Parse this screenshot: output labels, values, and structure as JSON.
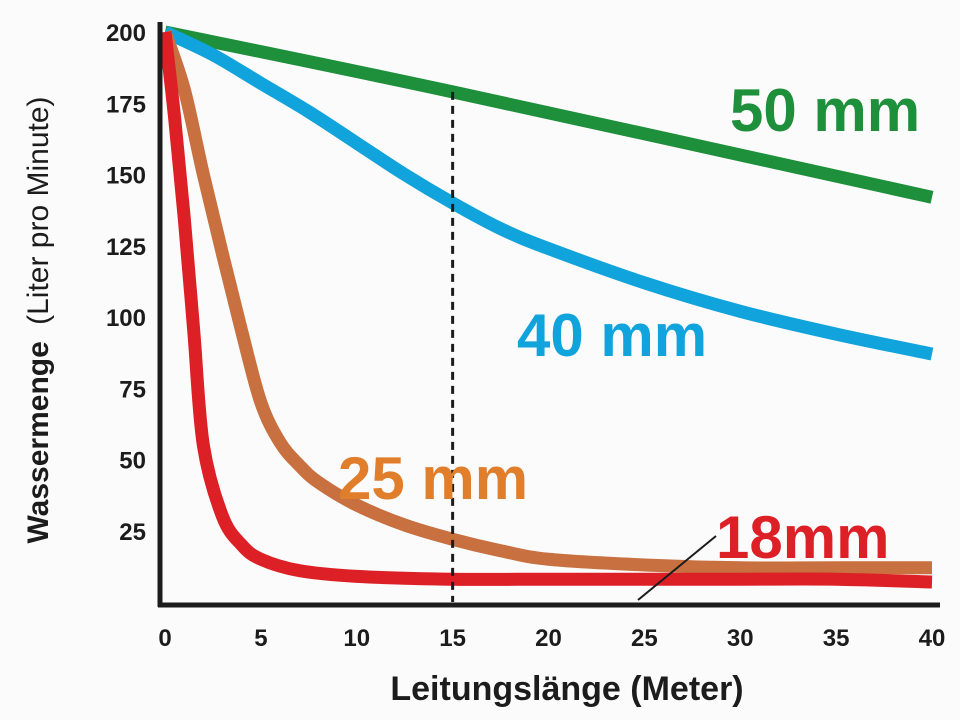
{
  "chart_data": {
    "type": "line",
    "title": "",
    "xlabel": "Leitungslänge (Meter)",
    "ylabel_main": "Wassermenge",
    "ylabel_unit": "(Liter pro Minute)",
    "xlim": [
      0,
      40
    ],
    "ylim": [
      0,
      200
    ],
    "x_ticks": [
      0,
      5,
      10,
      15,
      20,
      25,
      30,
      35,
      40
    ],
    "y_ticks": [
      25,
      50,
      75,
      100,
      125,
      150,
      175,
      200
    ],
    "grid": false,
    "marker_line_x": 15,
    "series": [
      {
        "name": "50 mm",
        "color": "#1e8f3a",
        "label_color": "#1e8f3a",
        "x": [
          0,
          15,
          40
        ],
        "y": [
          200,
          179,
          142
        ]
      },
      {
        "name": "40 mm",
        "color": "#11a3dc",
        "label_color": "#11a3dc",
        "x": [
          0,
          2.5,
          5,
          7.5,
          10,
          12.5,
          15,
          17.5,
          20,
          25,
          30,
          35,
          40
        ],
        "y": [
          200,
          192,
          182,
          172,
          161,
          150,
          140,
          131,
          124,
          112,
          102,
          94,
          87
        ]
      },
      {
        "name": "25 mm",
        "color": "#c8703f",
        "label_color": "#e07e2c",
        "x": [
          0,
          1,
          2,
          3,
          4,
          5,
          6,
          7,
          8,
          10,
          12.5,
          15,
          17.5,
          20,
          25,
          30,
          35,
          40
        ],
        "y": [
          200,
          180,
          150,
          122,
          95,
          70,
          56,
          48,
          42,
          34,
          27,
          22,
          18,
          15,
          13,
          12,
          12,
          12
        ]
      },
      {
        "name": "18mm",
        "color": "#dd1f26",
        "label_color": "#dd1f26",
        "x": [
          0,
          0.5,
          1,
          1.5,
          2,
          3,
          4,
          5,
          7,
          10,
          15,
          20,
          25,
          30,
          35,
          40
        ],
        "y": [
          200,
          170,
          135,
          95,
          55,
          30,
          20,
          15,
          11,
          9,
          8,
          8,
          8,
          8,
          8,
          7
        ]
      }
    ]
  }
}
